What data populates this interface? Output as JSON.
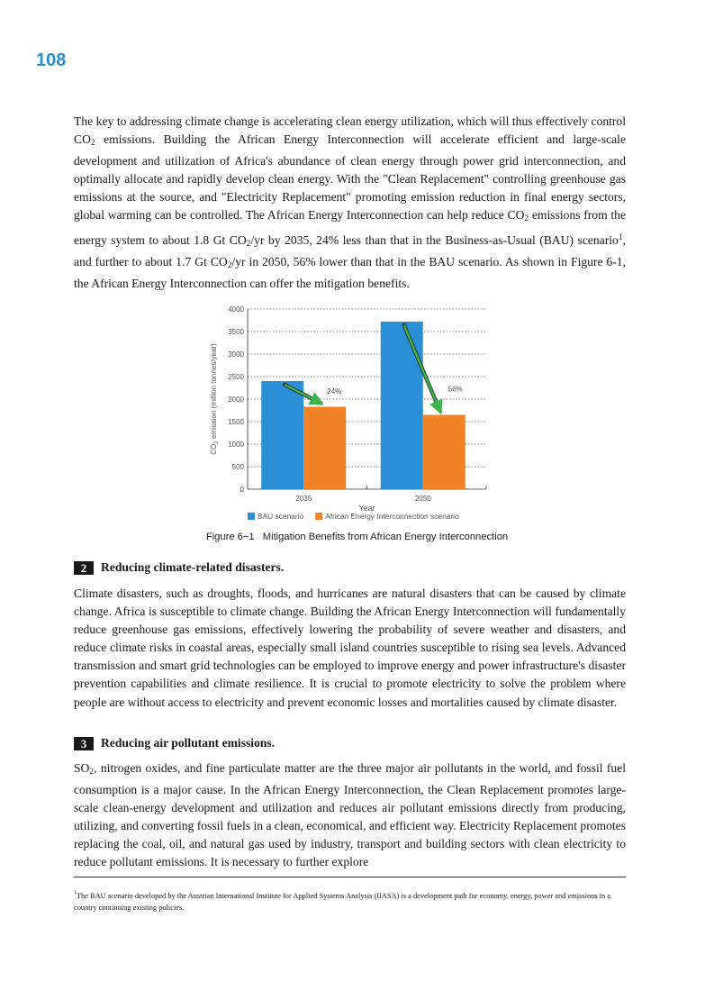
{
  "page_number": "108",
  "paragraph1": {
    "t1": "The key to addressing climate change is accelerating clean energy utilization, which will thus effectively control CO",
    "t2": " emissions. Building the African Energy Interconnection will accelerate efficient and large-scale development and utilization of Africa's abundance of clean energy through power grid interconnection, and optimally allocate and rapidly develop clean energy. With the \"Clean Replacement\" controlling greenhouse gas emissions at the source, and \"Electricity Replacement\" promoting emission reduction in final energy sectors, global warming can be controlled. The African Energy Interconnection can help reduce CO",
    "t3": " emissions from the energy system to about 1.8 Gt CO",
    "t4": "/yr by 2035, 24% less than that in the Business-as-Usual (BAU) scenario",
    "t5": ", and further to about 1.7 Gt CO",
    "t6": "/yr in 2050, 56% lower than that in the BAU scenario. As shown in Figure 6-1, the African Energy Interconnection can offer the mitigation benefits.",
    "sub2": "2",
    "sup1": "1"
  },
  "figure": {
    "label": "Figure 6−1",
    "title": "Mitigation Benefits from African Energy Interconnection"
  },
  "chart_data": {
    "type": "bar",
    "categories": [
      "2035",
      "2050"
    ],
    "series": [
      {
        "name": "BAU scenario",
        "values": [
          2400,
          3720
        ],
        "color": "#2a8fd4"
      },
      {
        "name": "African Energy Interconnection scenario",
        "values": [
          1830,
          1650
        ],
        "color": "#f28227"
      }
    ],
    "annotations": [
      {
        "category": "2035",
        "text": "24%"
      },
      {
        "category": "2050",
        "text": "56%"
      }
    ],
    "arrow_color": "#3cb44b",
    "xlabel": "Year",
    "ylabel_pre": "CO",
    "ylabel_sub": "2",
    "ylabel_post": " emission (million tonnes/year)",
    "ylim": [
      0,
      4000
    ],
    "yticks": [
      0,
      500,
      1000,
      1500,
      2000,
      2500,
      3000,
      3500,
      4000
    ],
    "grid": "dotted horizontal",
    "legend_position": "bottom"
  },
  "section2": {
    "number": "2",
    "heading": "Reducing climate-related disasters.",
    "text": "Climate disasters, such as droughts, floods, and hurricanes are natural disasters that can be caused by climate change. Africa is susceptible to climate change. Building the African Energy Interconnection will fundamentally reduce greenhouse gas emissions, effectively lowering the probability of severe weather and disasters, and reduce climate risks in coastal areas, especially small island countries susceptible to rising sea levels. Advanced transmission and smart grid technologies can be employed to improve energy and power infrastructure's disaster prevention capabilities and climate resilience. It is crucial to promote electricity to solve the problem where people are without access to electricity and prevent economic losses and mortalities caused by climate disaster."
  },
  "section3": {
    "number": "3",
    "heading": "Reducing air pollutant emissions.",
    "t1": "SO",
    "sub": "2",
    "t2": ", nitrogen oxides, and fine particulate matter are the three major air pollutants in the world, and fossil fuel consumption is a major cause. In the African Energy Interconnection, the Clean Replacement promotes large-scale clean-energy development and utilization and reduces air pollutant emissions directly from producing, utilizing, and converting fossil fuels in a clean, economical, and efficient way. Electricity Replacement promotes replacing the coal, oil, and natural gas used by industry, transport and building sectors with clean electricity to reduce pollutant emissions. It is necessary to further explore"
  },
  "footnote": {
    "mark": "1",
    "text": "The BAU scenario developed by the Austrian International Institute for Applied Systems Analysis (IIASA) is a development path for economy, energy, power and emissions in a country continuing existing policies."
  }
}
